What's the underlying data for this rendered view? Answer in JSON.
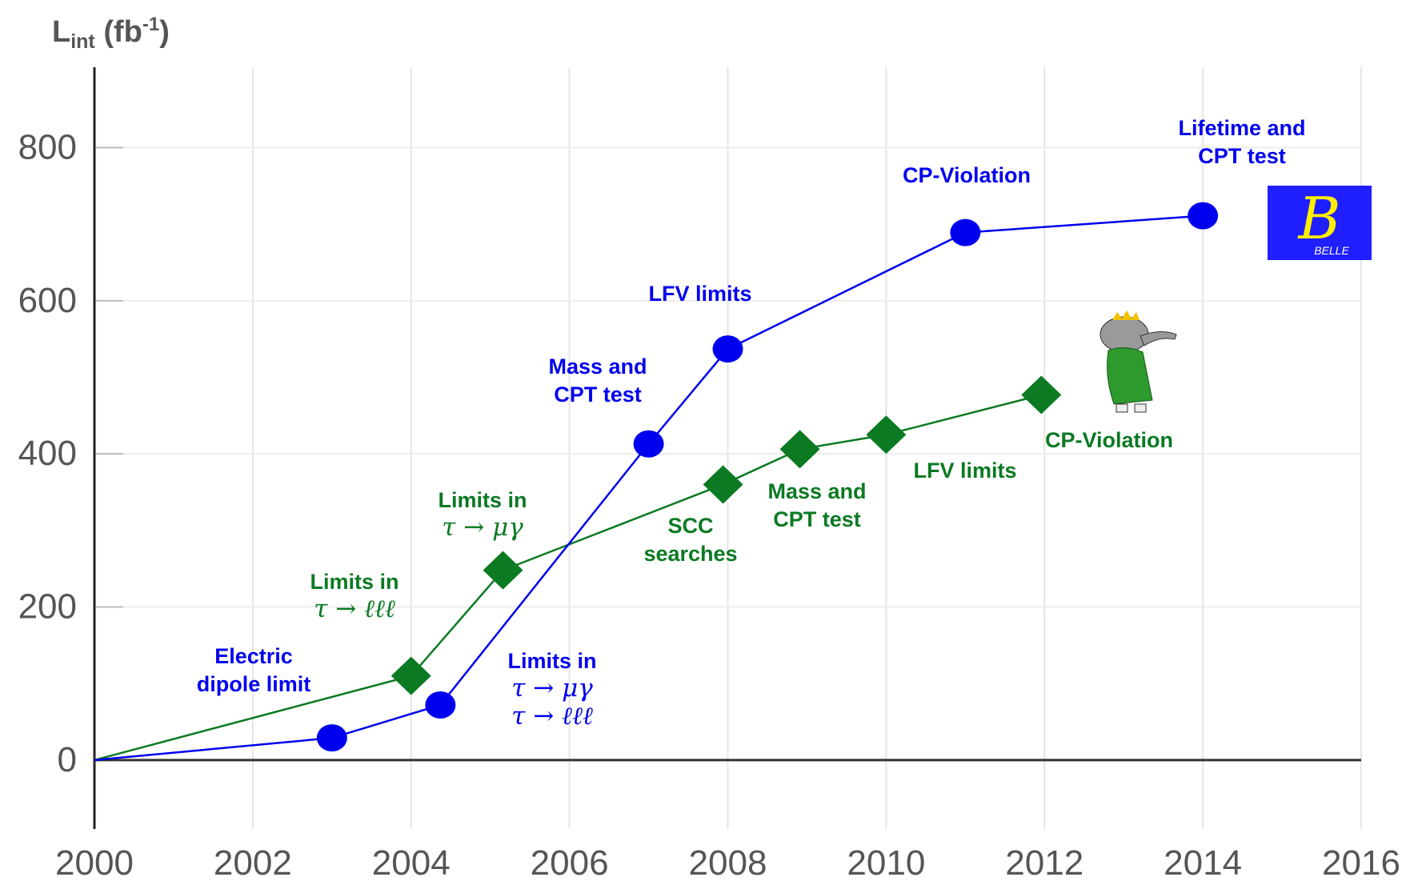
{
  "chart_data": {
    "type": "line",
    "ylabel": {
      "main": "L",
      "sub": "int",
      "rest": " (fb",
      "sup": "-1",
      "end": ")"
    },
    "xlim": [
      2000,
      2016
    ],
    "xticks": [
      2000,
      2002,
      2004,
      2006,
      2008,
      2010,
      2012,
      2014,
      2016
    ],
    "ylim": [
      -90,
      905
    ],
    "yticks": [
      0,
      200,
      400,
      600,
      800
    ],
    "grid": true,
    "series": [
      {
        "color": "#0000ee",
        "marker": "circle",
        "x": [
          2000,
          2003.0,
          2004.37,
          2007.0,
          2008.0,
          2011.0,
          2014.0
        ],
        "values": [
          0,
          29,
          72,
          413,
          537,
          689,
          711
        ]
      },
      {
        "color": "#0b7a22",
        "marker": "diamond",
        "x": [
          2000,
          2004.0,
          2005.16,
          2007.94,
          2008.91,
          2010.0,
          2011.96
        ],
        "values": [
          0,
          110,
          248,
          360,
          406,
          425,
          477
        ]
      }
    ],
    "annotations": [
      {
        "color": "#0000ee",
        "lines": [
          "Electric",
          "dipole limit"
        ]
      },
      {
        "color": "#0b7a22",
        "lines": [
          "Limits in",
          "τ → ℓℓℓ"
        ]
      },
      {
        "color": "#0b7a22",
        "lines": [
          "Limits in",
          "τ → μγ"
        ]
      },
      {
        "color": "#0000ee",
        "lines": [
          "Limits in",
          "τ → μγ",
          "τ → ℓℓℓ"
        ]
      },
      {
        "color": "#0000ee",
        "lines": [
          "Mass and",
          "CPT test"
        ]
      },
      {
        "color": "#0000ee",
        "lines": [
          "LFV limits"
        ]
      },
      {
        "color": "#0b7a22",
        "lines": [
          "SCC",
          "searches"
        ]
      },
      {
        "color": "#0b7a22",
        "lines": [
          "Mass and",
          "CPT test"
        ]
      },
      {
        "color": "#0b7a22",
        "lines": [
          "LFV limits"
        ]
      },
      {
        "color": "#0b7a22",
        "lines": [
          "CP-Violation"
        ]
      },
      {
        "color": "#0000ee",
        "lines": [
          "CP-Violation"
        ]
      },
      {
        "color": "#0000ee",
        "lines": [
          "Lifetime and",
          "CPT test"
        ]
      }
    ],
    "logo": {
      "letter": "B",
      "name": "BELLE"
    }
  }
}
